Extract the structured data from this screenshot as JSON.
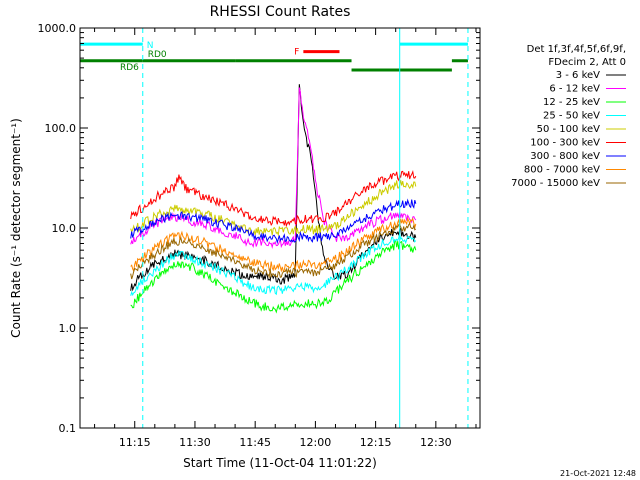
{
  "chart_data": {
    "type": "line",
    "title": "RHESSI Count Rates",
    "xlabel": "Start Time (11-Oct-04 11:01:22)",
    "ylabel": "Count Rate (s⁻¹ detector segment⁻¹)",
    "yscale": "log",
    "ylim": [
      0.1,
      1000
    ],
    "xlim": [
      "11:01:22",
      "12:41:00"
    ],
    "x_ticks": [
      "11:15",
      "11:30",
      "11:45",
      "12:00",
      "12:15",
      "12:30"
    ],
    "y_ticks": [
      "0.1",
      "1.0",
      "10.0",
      "100.0",
      "1000.0"
    ],
    "footer": "21-Oct-2021 12:48",
    "legend_header": [
      "Det 1f,3f,4f,5f,6f,9f,",
      "FDecim 2, Att 0"
    ],
    "series": [
      {
        "name": "3 - 6 keV",
        "color": "#000000",
        "x": [
          "11:14",
          "11:17",
          "11:20",
          "11:25",
          "11:28",
          "11:32",
          "11:38",
          "11:44",
          "11:48",
          "11:52",
          "11:55",
          "11:56",
          "11:57",
          "11:58",
          "11:59",
          "12:00",
          "12:02",
          "12:05",
          "12:08",
          "12:12",
          "12:16",
          "12:20",
          "12:23",
          "12:25"
        ],
        "values": [
          2.5,
          3.5,
          4.3,
          5.6,
          5.2,
          4.8,
          3.8,
          3.2,
          3.3,
          3.0,
          3.5,
          250,
          120,
          70,
          50,
          22,
          5,
          3.2,
          3.5,
          5.5,
          8,
          9.5,
          8.5,
          8
        ]
      },
      {
        "name": "6 - 12 keV",
        "color": "#ff00ff",
        "x": [
          "11:14",
          "11:17",
          "11:20",
          "11:25",
          "11:28",
          "11:32",
          "11:38",
          "11:44",
          "11:48",
          "11:52",
          "11:55",
          "11:56",
          "11:57",
          "11:58",
          "11:59",
          "12:00",
          "12:02",
          "12:05",
          "12:08",
          "12:12",
          "12:16",
          "12:20",
          "12:23",
          "12:25"
        ],
        "values": [
          7,
          9,
          11,
          13,
          12,
          11,
          9,
          7,
          7.2,
          7,
          7.5,
          240,
          140,
          90,
          55,
          30,
          12,
          8,
          8,
          10,
          12,
          14,
          13,
          12
        ]
      },
      {
        "name": "12 - 25 keV",
        "color": "#00ff00",
        "x": [
          "11:14",
          "11:17",
          "11:20",
          "11:25",
          "11:28",
          "11:32",
          "11:38",
          "11:44",
          "11:48",
          "11:52",
          "11:55",
          "11:58",
          "12:00",
          "12:03",
          "12:06",
          "12:08",
          "12:12",
          "12:16",
          "12:20",
          "12:23",
          "12:25"
        ],
        "values": [
          1.6,
          2.3,
          3,
          4.5,
          4.3,
          3.5,
          2.5,
          1.8,
          1.6,
          1.6,
          1.7,
          1.8,
          1.7,
          1.9,
          2.5,
          3,
          4,
          5.5,
          6.8,
          6.5,
          6
        ]
      },
      {
        "name": "25 - 50 keV",
        "color": "#00ffff",
        "x": [
          "11:14",
          "11:17",
          "11:20",
          "11:25",
          "11:28",
          "11:32",
          "11:38",
          "11:44",
          "11:48",
          "11:52",
          "11:55",
          "11:58",
          "12:00",
          "12:03",
          "12:06",
          "12:08",
          "12:12",
          "12:16",
          "12:20",
          "12:23",
          "12:25"
        ],
        "values": [
          2.2,
          3,
          3.8,
          5.4,
          5.2,
          4.5,
          3.5,
          2.6,
          2.4,
          2.4,
          2.5,
          2.6,
          2.5,
          2.8,
          3.4,
          4,
          5.2,
          6.8,
          8,
          7.8,
          7.5
        ]
      },
      {
        "name": "50 - 100 keV",
        "color": "#cccc00",
        "x": [
          "11:14",
          "11:17",
          "11:20",
          "11:25",
          "11:28",
          "11:32",
          "11:38",
          "11:44",
          "11:48",
          "11:52",
          "11:55",
          "11:58",
          "12:00",
          "12:03",
          "12:06",
          "12:08",
          "12:12",
          "12:16",
          "12:20",
          "12:23",
          "12:25"
        ],
        "values": [
          9,
          11,
          13,
          16,
          15,
          14,
          11.5,
          9.5,
          9.2,
          9.3,
          9.5,
          9.8,
          9.5,
          10,
          11,
          13,
          17,
          22,
          27,
          28,
          26
        ]
      },
      {
        "name": "100 - 300 keV",
        "color": "#ff0000",
        "x": [
          "11:14",
          "11:17",
          "11:20",
          "11:25",
          "11:26",
          "11:28",
          "11:32",
          "11:38",
          "11:44",
          "11:48",
          "11:52",
          "11:55",
          "11:58",
          "12:00",
          "12:03",
          "12:06",
          "12:08",
          "12:12",
          "12:16",
          "12:20",
          "12:23",
          "12:25"
        ],
        "values": [
          13,
          16,
          20,
          26,
          33,
          24,
          21,
          17,
          13,
          12,
          11.5,
          12,
          12.5,
          12,
          13,
          15,
          18,
          24,
          29,
          33,
          34,
          33
        ]
      },
      {
        "name": "300 - 800 keV",
        "color": "#0000ff",
        "x": [
          "11:14",
          "11:17",
          "11:20",
          "11:25",
          "11:28",
          "11:32",
          "11:38",
          "11:44",
          "11:48",
          "11:52",
          "11:55",
          "11:58",
          "12:00",
          "12:03",
          "12:06",
          "12:08",
          "12:12",
          "12:16",
          "12:20",
          "12:23",
          "12:25"
        ],
        "values": [
          8.5,
          10,
          11.5,
          13.5,
          13,
          12.5,
          10.5,
          8.5,
          8,
          7.8,
          8,
          8.2,
          8,
          8.3,
          9,
          10,
          12.5,
          15,
          17,
          18,
          17.5
        ]
      },
      {
        "name": "800 - 7000 keV",
        "color": "#ff8800",
        "x": [
          "11:14",
          "11:17",
          "11:20",
          "11:25",
          "11:28",
          "11:32",
          "11:38",
          "11:44",
          "11:48",
          "11:52",
          "11:55",
          "11:58",
          "12:00",
          "12:03",
          "12:06",
          "12:08",
          "12:12",
          "12:16",
          "12:20",
          "12:23",
          "12:25"
        ],
        "values": [
          3.8,
          5,
          6.2,
          8.5,
          8.2,
          7.3,
          5.8,
          4.5,
          4.2,
          4.1,
          4.2,
          4.3,
          4.2,
          4.5,
          5.2,
          6,
          7.8,
          9.5,
          11,
          11.5,
          11
        ]
      },
      {
        "name": "7000 - 15000 keV",
        "color": "#996600",
        "x": [
          "11:14",
          "11:17",
          "11:20",
          "11:25",
          "11:28",
          "11:32",
          "11:38",
          "11:44",
          "11:48",
          "11:52",
          "11:55",
          "11:58",
          "12:00",
          "12:03",
          "12:06",
          "12:08",
          "12:12",
          "12:16",
          "12:20",
          "12:23",
          "12:25"
        ],
        "values": [
          3.3,
          4.4,
          5.5,
          7.5,
          7.2,
          6.4,
          5,
          3.9,
          3.6,
          3.5,
          3.6,
          3.7,
          3.6,
          3.9,
          4.5,
          5.2,
          6.8,
          8.4,
          9.8,
          10.2,
          9.8
        ]
      }
    ],
    "state_bars": [
      {
        "label": "N",
        "color": "#00ffff",
        "level": 690,
        "segments": [
          [
            "11:01:22",
            "11:17"
          ],
          [
            "12:21",
            "12:38"
          ]
        ]
      },
      {
        "label": "F",
        "color": "#ff0000",
        "level": 580,
        "segments": [
          [
            "11:57",
            "12:06"
          ]
        ]
      },
      {
        "label": "RD0",
        "color": "#008000",
        "level": 470,
        "segments": [
          [
            "11:17",
            "11:40"
          ]
        ]
      },
      {
        "label": "RD6",
        "color": "#008000",
        "level": 470,
        "segments": [
          [
            "11:01:22",
            "11:17"
          ]
        ]
      },
      {
        "label": "",
        "color": "#008000",
        "level": 470,
        "segments": [
          [
            "11:40",
            "12:09"
          ]
        ]
      },
      {
        "label": "",
        "color": "#008000",
        "level": 380,
        "segments": [
          [
            "12:09",
            "12:34"
          ]
        ]
      },
      {
        "label": "",
        "color": "#008000",
        "level": 470,
        "segments": [
          [
            "12:34",
            "12:38"
          ]
        ]
      }
    ],
    "vertical_lines": [
      {
        "x": "11:01:22",
        "color": "#00ffff",
        "style": "solid"
      },
      {
        "x": "11:17",
        "color": "#00ffff",
        "style": "dashed"
      },
      {
        "x": "12:21",
        "color": "#00ffff",
        "style": "solid"
      },
      {
        "x": "12:38",
        "color": "#00ffff",
        "style": "dashed"
      }
    ]
  }
}
